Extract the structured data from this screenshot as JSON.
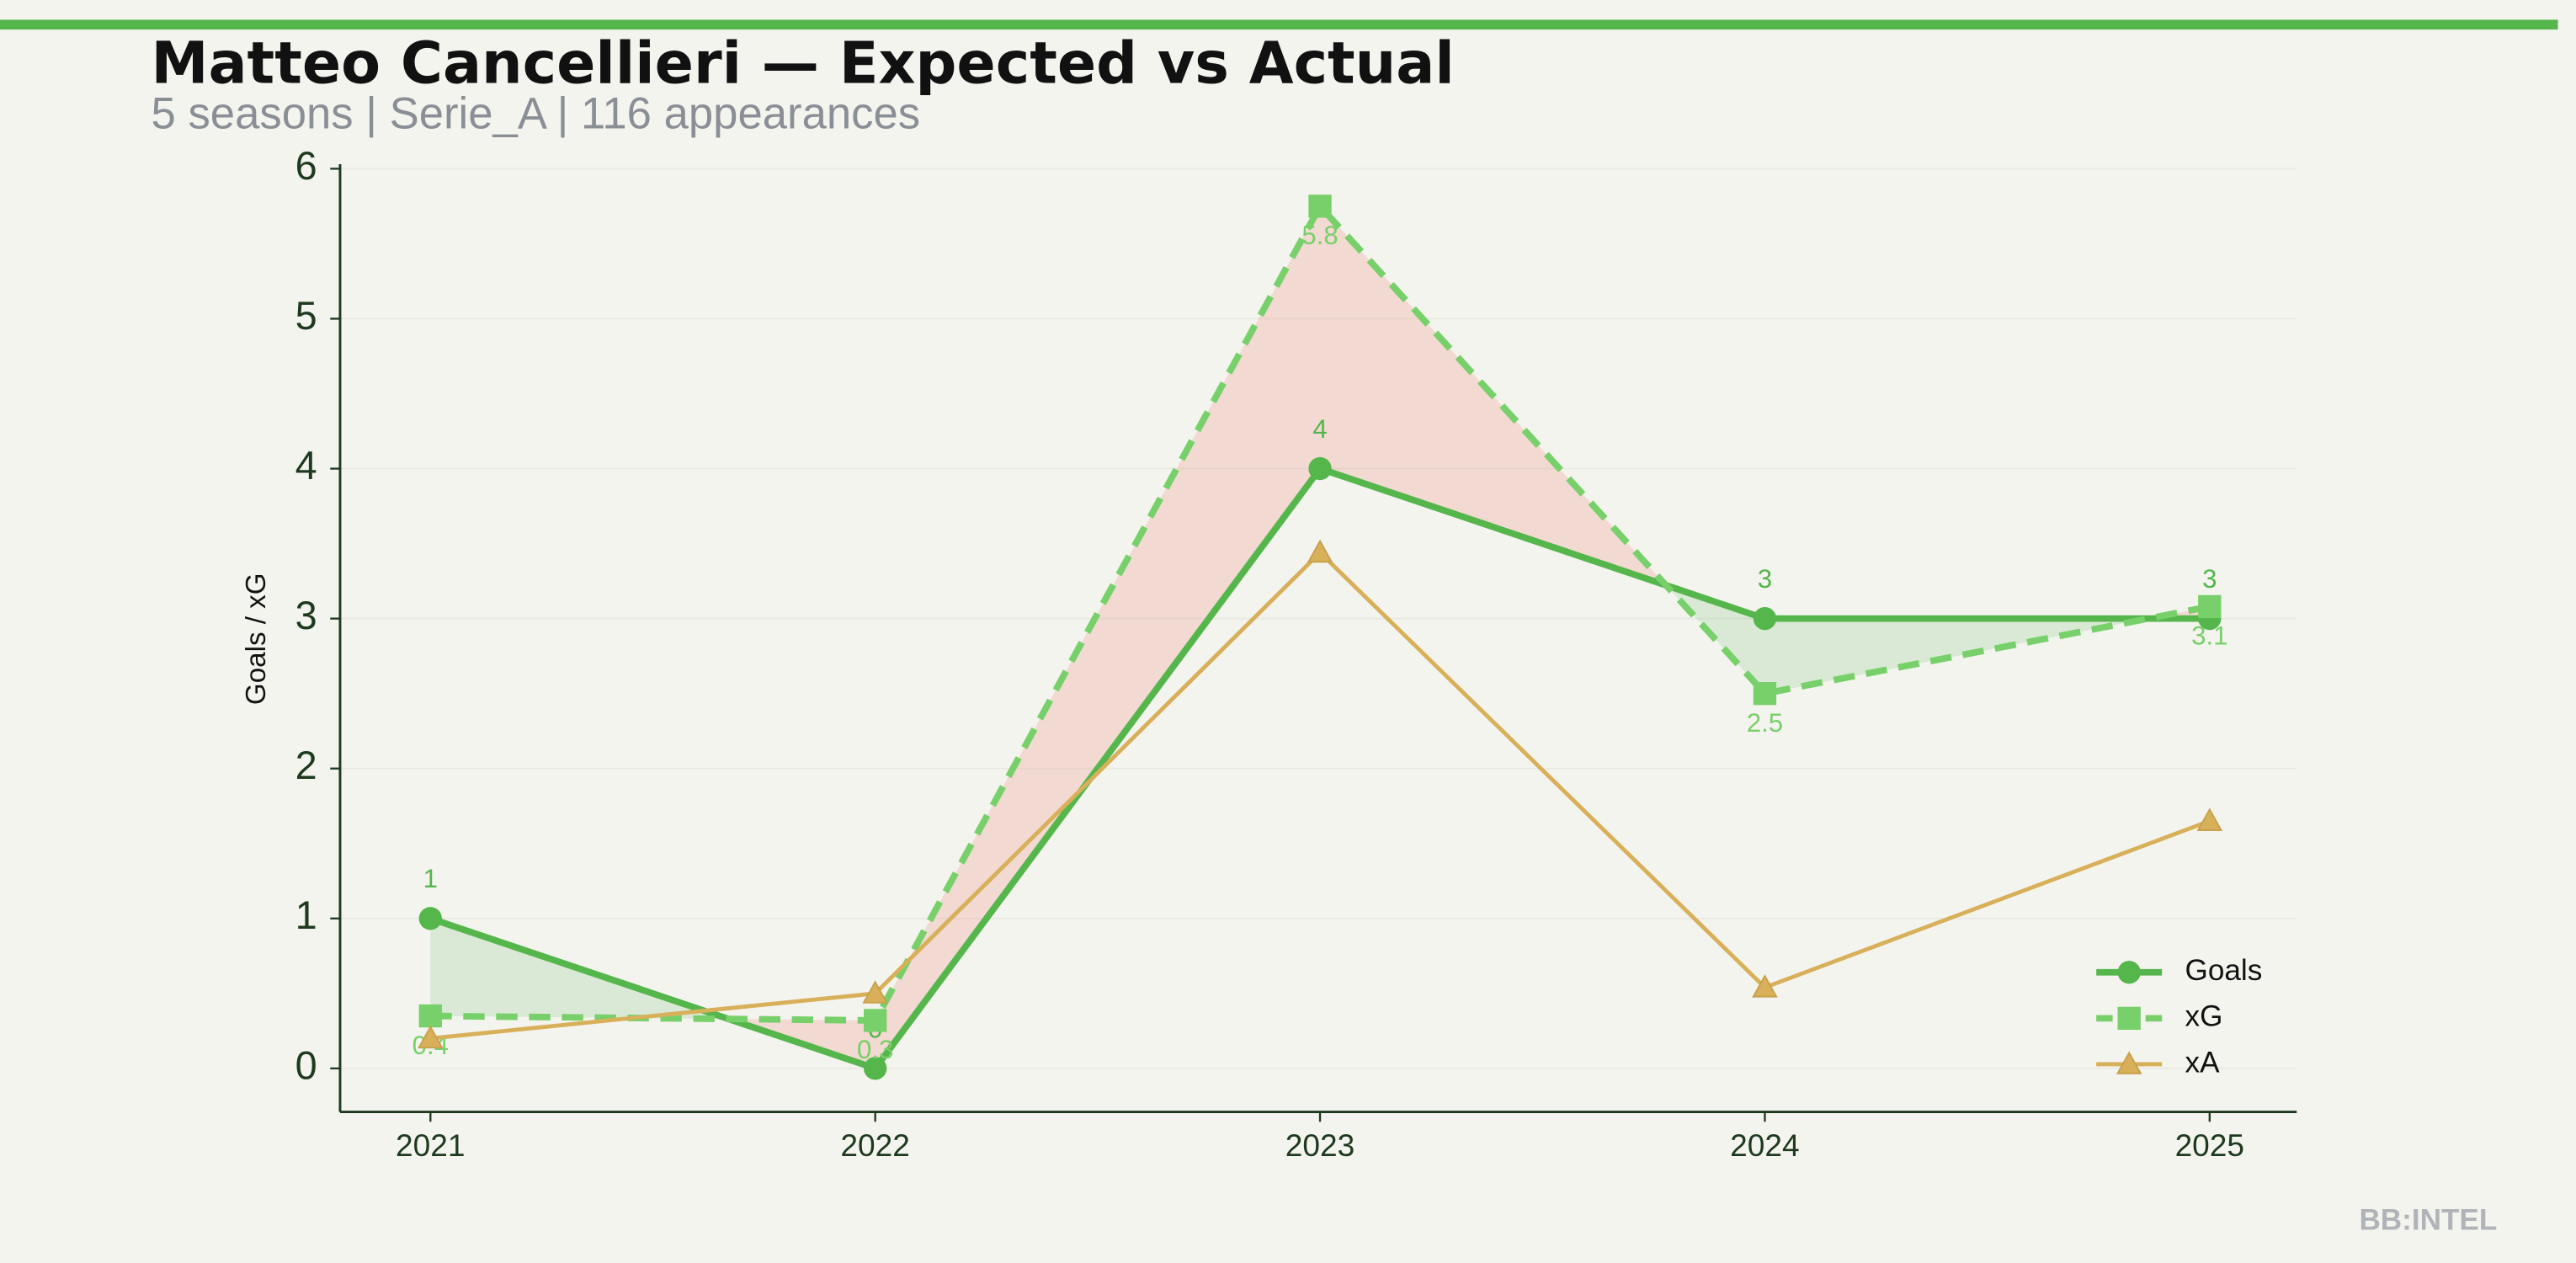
{
  "chart_data": {
    "type": "line",
    "title": "Matteo Cancellieri — Expected vs Actual",
    "subtitle": "5 seasons | Serie_A | 116 appearances",
    "y_label": "Goals / xG",
    "watermark": "BB:INTEL",
    "categories": [
      "2021",
      "2022",
      "2023",
      "2024",
      "2025"
    ],
    "series": [
      {
        "name": "Goals",
        "color": "#55b64c",
        "marker": "circle",
        "dashed": false,
        "values": [
          1,
          0,
          4,
          3,
          3
        ]
      },
      {
        "name": "xG",
        "color": "#77d069",
        "marker": "square",
        "dashed": true,
        "values": [
          0.35,
          0.32,
          5.75,
          2.5,
          3.08
        ],
        "value_labels": [
          "0.4",
          "0.3",
          "5.8",
          "2.5",
          "3.1"
        ]
      },
      {
        "name": "xA",
        "color": "#d8b05a",
        "marker": "triangle",
        "dashed": false,
        "values": [
          0.2,
          0.5,
          3.44,
          0.54,
          1.65
        ]
      }
    ],
    "ylim": [
      -0.29,
      6.03
    ],
    "yticks": [
      0,
      1,
      2,
      3,
      4,
      5,
      6
    ],
    "grid": true,
    "legend": "lower right",
    "fill_over_color": "#5cb85c",
    "fill_under_color": "#ef9a8c"
  }
}
